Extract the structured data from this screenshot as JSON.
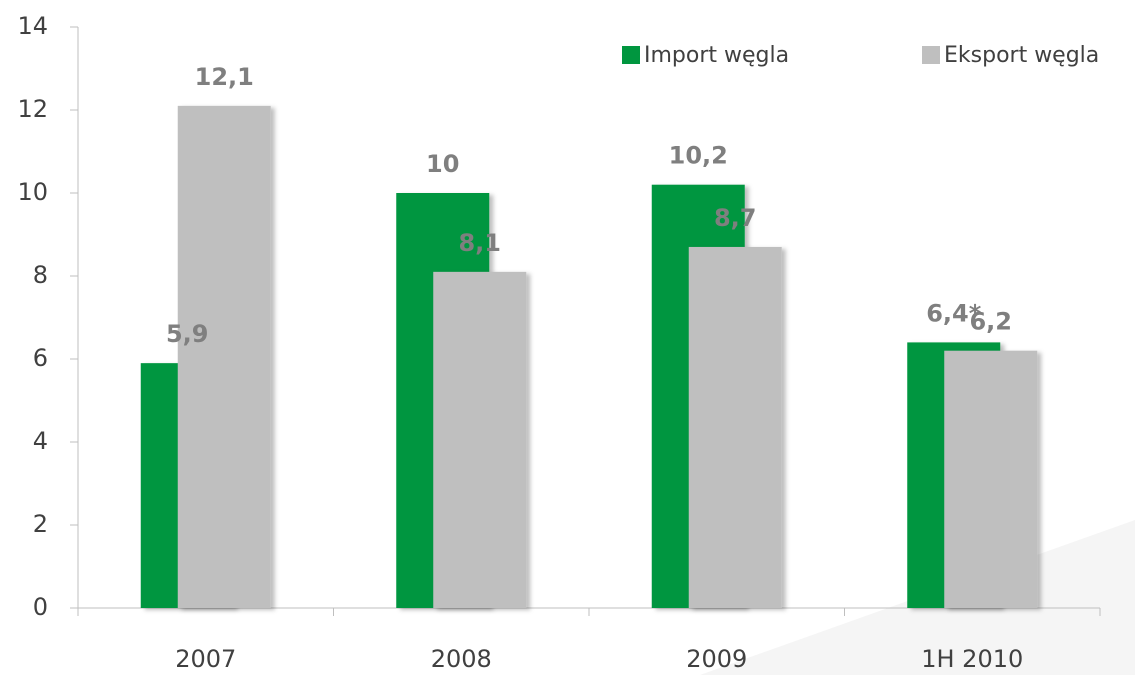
{
  "chart_data": {
    "type": "bar",
    "categories": [
      "2007",
      "2008",
      "2009",
      "1H 2010"
    ],
    "series": [
      {
        "name": "Import węgla",
        "color": "#00963f",
        "values": [
          5.9,
          10,
          10.2,
          6.4
        ],
        "value_labels": [
          "5,9",
          "10",
          "10,2",
          "6,4*"
        ]
      },
      {
        "name": "Eksport węgla",
        "color": "#bfbfbf",
        "values": [
          12.1,
          8.1,
          8.7,
          6.2
        ],
        "value_labels": [
          "12,1",
          "8,1",
          "8,7",
          "6,2"
        ]
      }
    ],
    "ylim": [
      0,
      14
    ],
    "yticks": [
      0,
      2,
      4,
      6,
      8,
      10,
      12,
      14
    ],
    "legend": "top-right"
  }
}
